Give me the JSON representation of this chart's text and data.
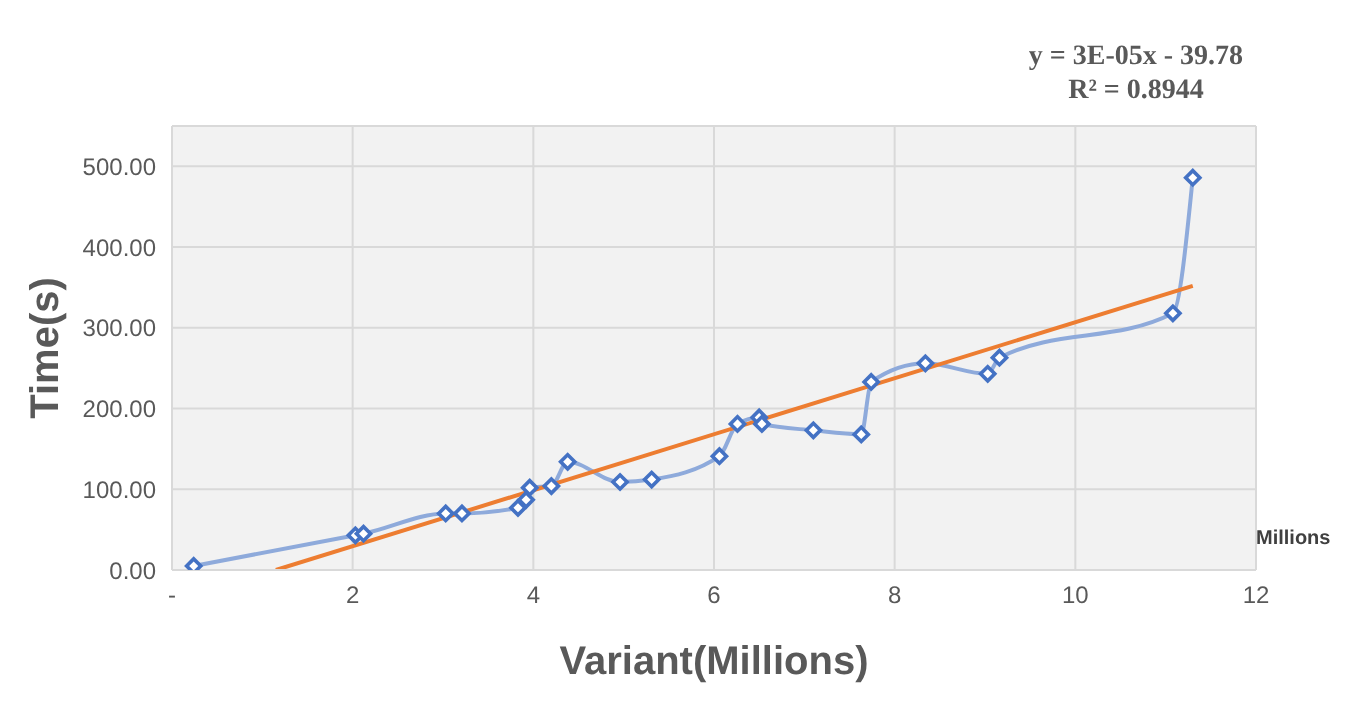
{
  "chart_data": {
    "type": "line",
    "xlabel": "Variant(Millions)",
    "ylabel": "Time(s)",
    "annotations": [
      "y = 3E-05x - 39.78\nR² = 0.8944",
      "Millions"
    ],
    "xlim": [
      0,
      12
    ],
    "xticks": [
      {
        "value": 0,
        "label": "-"
      },
      2,
      4,
      6,
      8,
      10,
      12
    ],
    "ylim": [
      0,
      550
    ],
    "yticks": [
      {
        "value": 0,
        "label": "0.00"
      },
      {
        "value": 100,
        "label": "100.00"
      },
      {
        "value": 200,
        "label": "200.00"
      },
      {
        "value": 300,
        "label": "300.00"
      },
      {
        "value": 400,
        "label": "400.00"
      },
      {
        "value": 500,
        "label": "500.00"
      }
    ],
    "grid": true,
    "series": [
      {
        "color": "#4472c4",
        "marker": "diamond",
        "x": [
          0.24,
          2.03,
          2.12,
          3.03,
          3.21,
          3.83,
          3.92,
          3.96,
          4.2,
          4.38,
          4.96,
          5.31,
          6.06,
          6.26,
          6.5,
          6.53,
          7.1,
          7.63,
          7.74,
          8.34,
          9.03,
          9.16,
          11.08,
          11.3
        ],
        "values": [
          5,
          43,
          45,
          70,
          70,
          77,
          87,
          102,
          104,
          134,
          109,
          112,
          141,
          181,
          189,
          181,
          173,
          168,
          233,
          256,
          243,
          263,
          318,
          486
        ]
      },
      {
        "color": "#ed7d31",
        "marker": "none",
        "x": [
          1.15,
          11.3
        ],
        "values": [
          0,
          352
        ]
      }
    ]
  }
}
